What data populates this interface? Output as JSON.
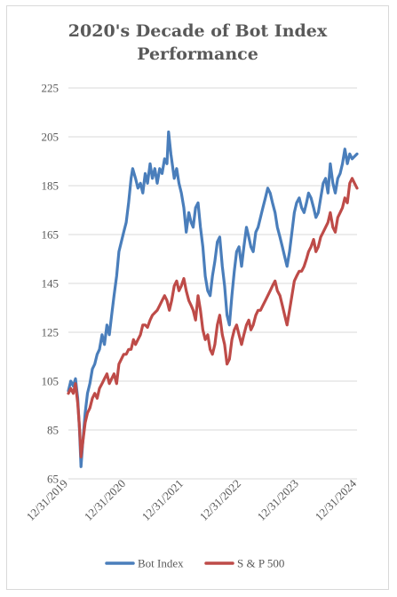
{
  "chart_data": {
    "type": "line",
    "title": "2020's Decade of Bot Index Performance",
    "title_lines": [
      "2020's Decade of Bot Index",
      "Performance"
    ],
    "xlabel": "",
    "ylabel": "",
    "x_ticks": [
      "12/31/2019",
      "12/31/2020",
      "12/31/2021",
      "12/31/2022",
      "12/31/2023",
      "12/31/2024"
    ],
    "y_ticks": [
      65,
      85,
      105,
      125,
      145,
      165,
      185,
      205,
      225
    ],
    "ylim": [
      65,
      225
    ],
    "xlim": [
      "2019-12-31",
      "2024-12-31"
    ],
    "grid": "horizontal",
    "legend_position": "bottom",
    "series": [
      {
        "name": "Bot Index",
        "color": "#4a7ebb",
        "points": [
          [
            "2019-12-31",
            101
          ],
          [
            "2020-01-15",
            105
          ],
          [
            "2020-01-31",
            103
          ],
          [
            "2020-02-14",
            106
          ],
          [
            "2020-02-28",
            98
          ],
          [
            "2020-03-10",
            85
          ],
          [
            "2020-03-20",
            70
          ],
          [
            "2020-03-31",
            80
          ],
          [
            "2020-04-15",
            92
          ],
          [
            "2020-04-30",
            100
          ],
          [
            "2020-05-15",
            104
          ],
          [
            "2020-05-31",
            110
          ],
          [
            "2020-06-15",
            112
          ],
          [
            "2020-06-30",
            116
          ],
          [
            "2020-07-15",
            118
          ],
          [
            "2020-07-31",
            124
          ],
          [
            "2020-08-15",
            120
          ],
          [
            "2020-08-31",
            128
          ],
          [
            "2020-09-15",
            124
          ],
          [
            "2020-09-30",
            132
          ],
          [
            "2020-10-15",
            140
          ],
          [
            "2020-10-31",
            148
          ],
          [
            "2020-11-15",
            158
          ],
          [
            "2020-11-30",
            162
          ],
          [
            "2020-12-15",
            166
          ],
          [
            "2020-12-31",
            170
          ],
          [
            "2021-01-15",
            178
          ],
          [
            "2021-01-31",
            188
          ],
          [
            "2021-02-10",
            192
          ],
          [
            "2021-02-28",
            188
          ],
          [
            "2021-03-15",
            184
          ],
          [
            "2021-03-31",
            186
          ],
          [
            "2021-04-15",
            182
          ],
          [
            "2021-04-30",
            190
          ],
          [
            "2021-05-15",
            186
          ],
          [
            "2021-05-31",
            194
          ],
          [
            "2021-06-15",
            188
          ],
          [
            "2021-06-30",
            192
          ],
          [
            "2021-07-15",
            186
          ],
          [
            "2021-07-31",
            192
          ],
          [
            "2021-08-15",
            190
          ],
          [
            "2021-08-31",
            196
          ],
          [
            "2021-09-15",
            194
          ],
          [
            "2021-09-25",
            207
          ],
          [
            "2021-10-10",
            198
          ],
          [
            "2021-10-31",
            188
          ],
          [
            "2021-11-15",
            192
          ],
          [
            "2021-11-30",
            186
          ],
          [
            "2021-12-15",
            182
          ],
          [
            "2021-12-31",
            176
          ],
          [
            "2022-01-15",
            166
          ],
          [
            "2022-01-31",
            174
          ],
          [
            "2022-02-15",
            170
          ],
          [
            "2022-02-28",
            168
          ],
          [
            "2022-03-15",
            176
          ],
          [
            "2022-03-31",
            178
          ],
          [
            "2022-04-15",
            168
          ],
          [
            "2022-04-30",
            160
          ],
          [
            "2022-05-15",
            148
          ],
          [
            "2022-05-31",
            142
          ],
          [
            "2022-06-15",
            140
          ],
          [
            "2022-06-30",
            148
          ],
          [
            "2022-07-15",
            154
          ],
          [
            "2022-07-31",
            162
          ],
          [
            "2022-08-15",
            164
          ],
          [
            "2022-08-31",
            152
          ],
          [
            "2022-09-15",
            144
          ],
          [
            "2022-09-30",
            132
          ],
          [
            "2022-10-15",
            128
          ],
          [
            "2022-10-31",
            140
          ],
          [
            "2022-11-15",
            150
          ],
          [
            "2022-11-30",
            158
          ],
          [
            "2022-12-15",
            160
          ],
          [
            "2022-12-31",
            152
          ],
          [
            "2023-01-15",
            160
          ],
          [
            "2023-01-31",
            168
          ],
          [
            "2023-02-15",
            164
          ],
          [
            "2023-02-28",
            160
          ],
          [
            "2023-03-15",
            158
          ],
          [
            "2023-03-31",
            166
          ],
          [
            "2023-04-15",
            168
          ],
          [
            "2023-04-30",
            172
          ],
          [
            "2023-05-15",
            176
          ],
          [
            "2023-05-31",
            180
          ],
          [
            "2023-06-15",
            184
          ],
          [
            "2023-06-30",
            182
          ],
          [
            "2023-07-15",
            178
          ],
          [
            "2023-07-31",
            174
          ],
          [
            "2023-08-15",
            168
          ],
          [
            "2023-08-31",
            164
          ],
          [
            "2023-09-15",
            160
          ],
          [
            "2023-09-30",
            156
          ],
          [
            "2023-10-15",
            152
          ],
          [
            "2023-10-31",
            158
          ],
          [
            "2023-11-15",
            166
          ],
          [
            "2023-11-30",
            174
          ],
          [
            "2023-12-15",
            178
          ],
          [
            "2023-12-31",
            180
          ],
          [
            "2024-01-15",
            176
          ],
          [
            "2024-01-31",
            174
          ],
          [
            "2024-02-15",
            178
          ],
          [
            "2024-02-28",
            182
          ],
          [
            "2024-03-15",
            180
          ],
          [
            "2024-03-31",
            176
          ],
          [
            "2024-04-15",
            172
          ],
          [
            "2024-04-30",
            174
          ],
          [
            "2024-05-15",
            180
          ],
          [
            "2024-05-31",
            186
          ],
          [
            "2024-06-15",
            188
          ],
          [
            "2024-06-30",
            182
          ],
          [
            "2024-07-15",
            194
          ],
          [
            "2024-07-31",
            186
          ],
          [
            "2024-08-15",
            182
          ],
          [
            "2024-08-31",
            188
          ],
          [
            "2024-09-15",
            190
          ],
          [
            "2024-09-30",
            194
          ],
          [
            "2024-10-15",
            200
          ],
          [
            "2024-10-31",
            194
          ],
          [
            "2024-11-15",
            198
          ],
          [
            "2024-11-30",
            196
          ],
          [
            "2024-12-31",
            198
          ]
        ]
      },
      {
        "name": "S & P 500",
        "color": "#be4b48",
        "points": [
          [
            "2019-12-31",
            100
          ],
          [
            "2020-01-15",
            102
          ],
          [
            "2020-01-31",
            100
          ],
          [
            "2020-02-14",
            104
          ],
          [
            "2020-02-28",
            96
          ],
          [
            "2020-03-10",
            86
          ],
          [
            "2020-03-20",
            74
          ],
          [
            "2020-03-31",
            80
          ],
          [
            "2020-04-15",
            88
          ],
          [
            "2020-04-30",
            92
          ],
          [
            "2020-05-15",
            94
          ],
          [
            "2020-05-31",
            98
          ],
          [
            "2020-06-15",
            100
          ],
          [
            "2020-06-30",
            98
          ],
          [
            "2020-07-15",
            102
          ],
          [
            "2020-07-31",
            104
          ],
          [
            "2020-08-15",
            106
          ],
          [
            "2020-08-31",
            108
          ],
          [
            "2020-09-15",
            104
          ],
          [
            "2020-09-30",
            106
          ],
          [
            "2020-10-15",
            108
          ],
          [
            "2020-10-31",
            104
          ],
          [
            "2020-11-15",
            112
          ],
          [
            "2020-11-30",
            114
          ],
          [
            "2020-12-15",
            116
          ],
          [
            "2020-12-31",
            116
          ],
          [
            "2021-01-15",
            118
          ],
          [
            "2021-01-31",
            118
          ],
          [
            "2021-02-15",
            122
          ],
          [
            "2021-02-28",
            120
          ],
          [
            "2021-03-15",
            122
          ],
          [
            "2021-03-31",
            124
          ],
          [
            "2021-04-15",
            128
          ],
          [
            "2021-04-30",
            128
          ],
          [
            "2021-05-15",
            127
          ],
          [
            "2021-05-31",
            130
          ],
          [
            "2021-06-15",
            132
          ],
          [
            "2021-06-30",
            133
          ],
          [
            "2021-07-15",
            134
          ],
          [
            "2021-07-31",
            136
          ],
          [
            "2021-08-15",
            138
          ],
          [
            "2021-08-31",
            140
          ],
          [
            "2021-09-15",
            138
          ],
          [
            "2021-09-30",
            134
          ],
          [
            "2021-10-15",
            138
          ],
          [
            "2021-10-31",
            144
          ],
          [
            "2021-11-15",
            146
          ],
          [
            "2021-11-30",
            142
          ],
          [
            "2021-12-15",
            144
          ],
          [
            "2021-12-31",
            147
          ],
          [
            "2022-01-15",
            142
          ],
          [
            "2022-01-31",
            138
          ],
          [
            "2022-02-15",
            136
          ],
          [
            "2022-02-28",
            134
          ],
          [
            "2022-03-15",
            130
          ],
          [
            "2022-03-31",
            140
          ],
          [
            "2022-04-15",
            134
          ],
          [
            "2022-04-30",
            126
          ],
          [
            "2022-05-15",
            122
          ],
          [
            "2022-05-31",
            124
          ],
          [
            "2022-06-15",
            118
          ],
          [
            "2022-06-30",
            116
          ],
          [
            "2022-07-15",
            120
          ],
          [
            "2022-07-31",
            128
          ],
          [
            "2022-08-15",
            132
          ],
          [
            "2022-08-31",
            124
          ],
          [
            "2022-09-15",
            120
          ],
          [
            "2022-09-30",
            112
          ],
          [
            "2022-10-15",
            114
          ],
          [
            "2022-10-31",
            122
          ],
          [
            "2022-11-15",
            126
          ],
          [
            "2022-11-30",
            128
          ],
          [
            "2022-12-15",
            124
          ],
          [
            "2022-12-31",
            120
          ],
          [
            "2023-01-15",
            124
          ],
          [
            "2023-01-31",
            128
          ],
          [
            "2023-02-15",
            130
          ],
          [
            "2023-02-28",
            126
          ],
          [
            "2023-03-15",
            128
          ],
          [
            "2023-03-31",
            132
          ],
          [
            "2023-04-15",
            134
          ],
          [
            "2023-04-30",
            134
          ],
          [
            "2023-05-15",
            136
          ],
          [
            "2023-05-31",
            138
          ],
          [
            "2023-06-15",
            140
          ],
          [
            "2023-06-30",
            142
          ],
          [
            "2023-07-15",
            144
          ],
          [
            "2023-07-31",
            146
          ],
          [
            "2023-08-15",
            142
          ],
          [
            "2023-08-31",
            140
          ],
          [
            "2023-09-15",
            136
          ],
          [
            "2023-09-30",
            132
          ],
          [
            "2023-10-15",
            128
          ],
          [
            "2023-10-31",
            134
          ],
          [
            "2023-11-15",
            140
          ],
          [
            "2023-11-30",
            146
          ],
          [
            "2023-12-15",
            148
          ],
          [
            "2023-12-31",
            150
          ],
          [
            "2024-01-15",
            150
          ],
          [
            "2024-01-31",
            152
          ],
          [
            "2024-02-15",
            155
          ],
          [
            "2024-02-28",
            158
          ],
          [
            "2024-03-15",
            160
          ],
          [
            "2024-03-31",
            163
          ],
          [
            "2024-04-15",
            158
          ],
          [
            "2024-04-30",
            160
          ],
          [
            "2024-05-15",
            164
          ],
          [
            "2024-05-31",
            166
          ],
          [
            "2024-06-15",
            168
          ],
          [
            "2024-06-30",
            170
          ],
          [
            "2024-07-15",
            174
          ],
          [
            "2024-07-31",
            168
          ],
          [
            "2024-08-15",
            166
          ],
          [
            "2024-08-31",
            172
          ],
          [
            "2024-09-15",
            174
          ],
          [
            "2024-09-30",
            176
          ],
          [
            "2024-10-15",
            180
          ],
          [
            "2024-10-31",
            178
          ],
          [
            "2024-11-15",
            186
          ],
          [
            "2024-11-30",
            188
          ],
          [
            "2024-12-15",
            186
          ],
          [
            "2024-12-31",
            184
          ]
        ]
      }
    ]
  }
}
